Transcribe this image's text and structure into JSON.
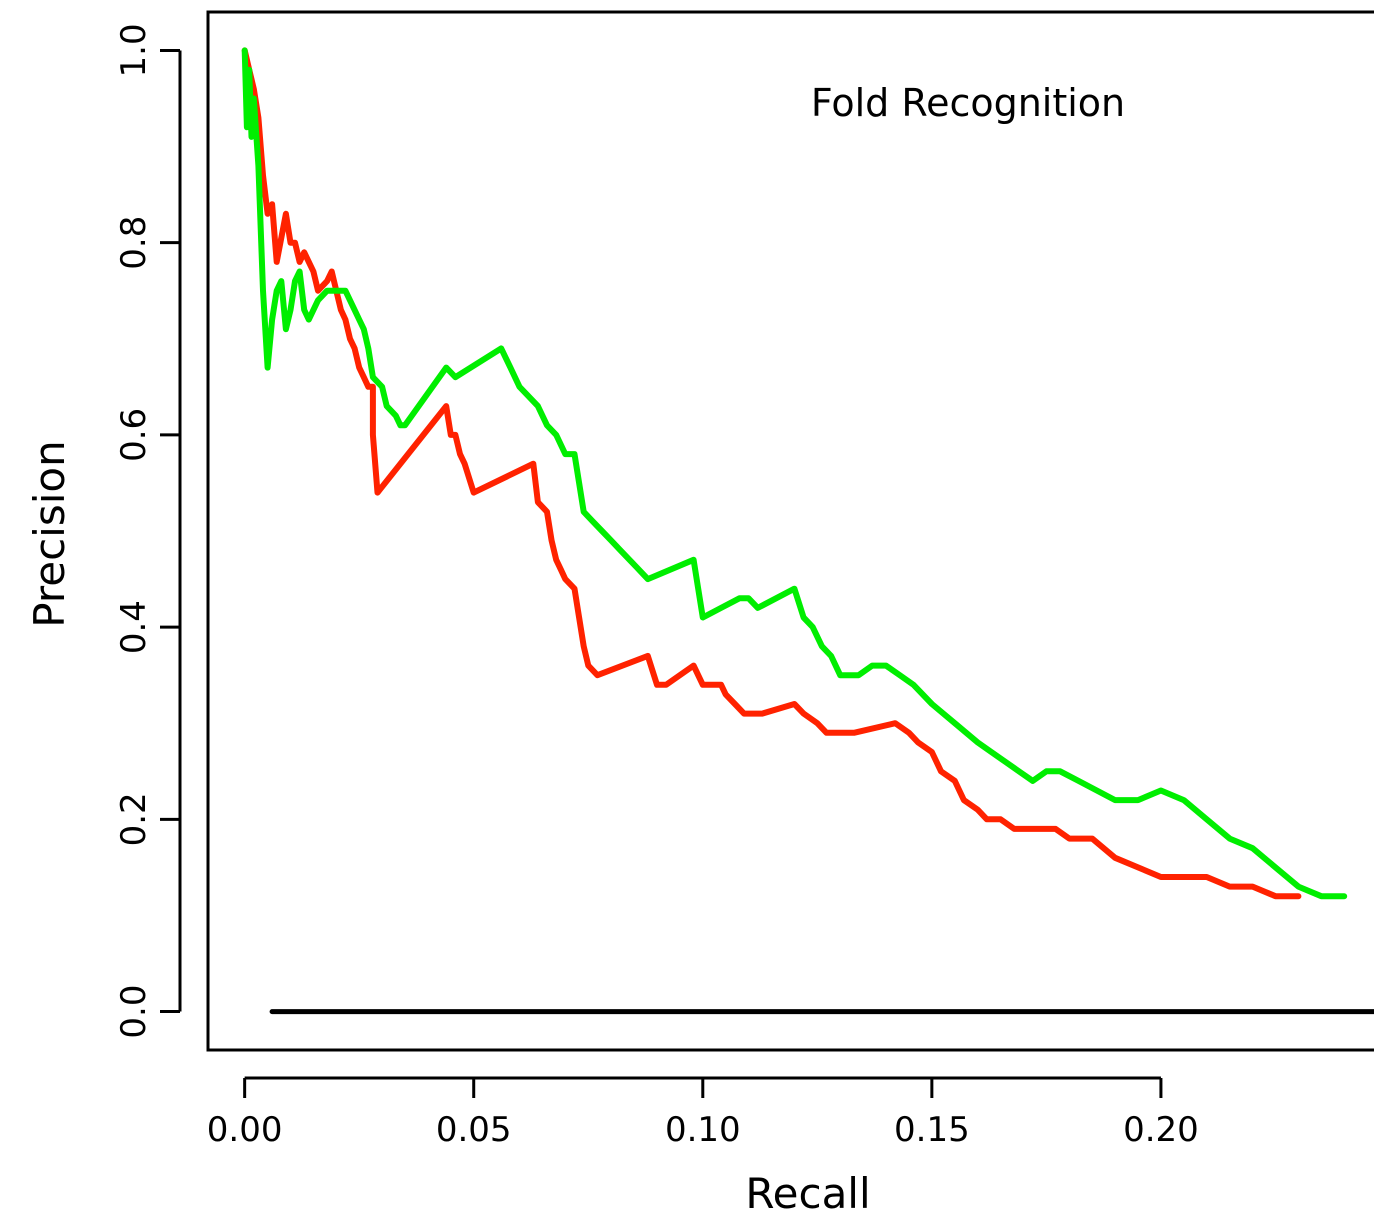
{
  "chart_data": {
    "type": "line",
    "title": "",
    "annotation": "Fold Recognition",
    "xlabel": "Recall",
    "ylabel": "Precision",
    "xlim": [
      -0.008,
      0.25
    ],
    "ylim": [
      -0.04,
      1.04
    ],
    "x_ticks": [
      0.0,
      0.05,
      0.1,
      0.15,
      0.2
    ],
    "x_tick_labels": [
      "0.00",
      "0.05",
      "0.10",
      "0.15",
      "0.20"
    ],
    "y_ticks": [
      0.0,
      0.2,
      0.4,
      0.6,
      0.8,
      1.0
    ],
    "y_tick_labels": [
      "0.0",
      "0.2",
      "0.4",
      "0.6",
      "0.8",
      "1.0"
    ],
    "grid": false,
    "legend": "none",
    "series": [
      {
        "color": "#ff2200",
        "x": [
          0.0,
          0.001,
          0.002,
          0.003,
          0.004,
          0.005,
          0.006,
          0.007,
          0.009,
          0.01,
          0.011,
          0.012,
          0.013,
          0.014,
          0.015,
          0.016,
          0.018,
          0.019,
          0.02,
          0.021,
          0.022,
          0.023,
          0.024,
          0.025,
          0.026,
          0.027,
          0.028,
          0.028,
          0.029,
          0.044,
          0.045,
          0.046,
          0.047,
          0.048,
          0.05,
          0.063,
          0.064,
          0.066,
          0.067,
          0.068,
          0.069,
          0.07,
          0.072,
          0.073,
          0.074,
          0.075,
          0.077,
          0.088,
          0.09,
          0.092,
          0.098,
          0.1,
          0.102,
          0.104,
          0.105,
          0.107,
          0.109,
          0.111,
          0.113,
          0.12,
          0.122,
          0.125,
          0.127,
          0.13,
          0.133,
          0.142,
          0.145,
          0.147,
          0.15,
          0.152,
          0.155,
          0.157,
          0.16,
          0.162,
          0.165,
          0.168,
          0.172,
          0.177,
          0.18,
          0.185,
          0.19,
          0.195,
          0.2,
          0.205,
          0.21,
          0.215,
          0.22,
          0.225,
          0.23
        ],
        "y": [
          1.0,
          0.98,
          0.96,
          0.93,
          0.87,
          0.83,
          0.84,
          0.78,
          0.83,
          0.8,
          0.8,
          0.78,
          0.79,
          0.78,
          0.77,
          0.75,
          0.76,
          0.77,
          0.75,
          0.73,
          0.72,
          0.7,
          0.69,
          0.67,
          0.66,
          0.65,
          0.65,
          0.6,
          0.54,
          0.63,
          0.6,
          0.6,
          0.58,
          0.57,
          0.54,
          0.57,
          0.53,
          0.52,
          0.49,
          0.47,
          0.46,
          0.45,
          0.44,
          0.41,
          0.38,
          0.36,
          0.35,
          0.37,
          0.34,
          0.34,
          0.36,
          0.34,
          0.34,
          0.34,
          0.33,
          0.32,
          0.31,
          0.31,
          0.31,
          0.32,
          0.31,
          0.3,
          0.29,
          0.29,
          0.29,
          0.3,
          0.29,
          0.28,
          0.27,
          0.25,
          0.24,
          0.22,
          0.21,
          0.2,
          0.2,
          0.19,
          0.19,
          0.19,
          0.18,
          0.18,
          0.16,
          0.15,
          0.14,
          0.14,
          0.14,
          0.13,
          0.13,
          0.12,
          0.12
        ]
      },
      {
        "color": "#00ee00",
        "x": [
          0.0,
          0.0005,
          0.001,
          0.0015,
          0.002,
          0.003,
          0.004,
          0.005,
          0.006,
          0.007,
          0.008,
          0.009,
          0.01,
          0.011,
          0.012,
          0.013,
          0.014,
          0.016,
          0.018,
          0.02,
          0.022,
          0.024,
          0.025,
          0.026,
          0.027,
          0.028,
          0.03,
          0.031,
          0.033,
          0.034,
          0.035,
          0.044,
          0.046,
          0.056,
          0.058,
          0.06,
          0.062,
          0.064,
          0.066,
          0.068,
          0.07,
          0.072,
          0.073,
          0.074,
          0.076,
          0.078,
          0.08,
          0.082,
          0.084,
          0.086,
          0.088,
          0.098,
          0.099,
          0.1,
          0.104,
          0.108,
          0.11,
          0.112,
          0.12,
          0.122,
          0.124,
          0.126,
          0.128,
          0.13,
          0.132,
          0.134,
          0.137,
          0.14,
          0.143,
          0.146,
          0.15,
          0.155,
          0.16,
          0.163,
          0.166,
          0.169,
          0.172,
          0.175,
          0.178,
          0.182,
          0.186,
          0.19,
          0.195,
          0.2,
          0.205,
          0.21,
          0.215,
          0.22,
          0.225,
          0.23,
          0.235,
          0.24
        ],
        "y": [
          1.0,
          0.92,
          0.98,
          0.91,
          0.95,
          0.88,
          0.75,
          0.67,
          0.72,
          0.75,
          0.76,
          0.71,
          0.73,
          0.76,
          0.77,
          0.73,
          0.72,
          0.74,
          0.75,
          0.75,
          0.75,
          0.73,
          0.72,
          0.71,
          0.69,
          0.66,
          0.65,
          0.63,
          0.62,
          0.61,
          0.61,
          0.67,
          0.66,
          0.69,
          0.67,
          0.65,
          0.64,
          0.63,
          0.61,
          0.6,
          0.58,
          0.58,
          0.55,
          0.52,
          0.51,
          0.5,
          0.49,
          0.48,
          0.47,
          0.46,
          0.45,
          0.47,
          0.44,
          0.41,
          0.42,
          0.43,
          0.43,
          0.42,
          0.44,
          0.41,
          0.4,
          0.38,
          0.37,
          0.35,
          0.35,
          0.35,
          0.36,
          0.36,
          0.35,
          0.34,
          0.32,
          0.3,
          0.28,
          0.27,
          0.26,
          0.25,
          0.24,
          0.25,
          0.25,
          0.24,
          0.23,
          0.22,
          0.22,
          0.23,
          0.22,
          0.2,
          0.18,
          0.17,
          0.15,
          0.13,
          0.12,
          0.12
        ]
      },
      {
        "color": "#000000",
        "x": [
          0.006,
          0.25
        ],
        "y": [
          0.0,
          0.0
        ]
      }
    ]
  }
}
